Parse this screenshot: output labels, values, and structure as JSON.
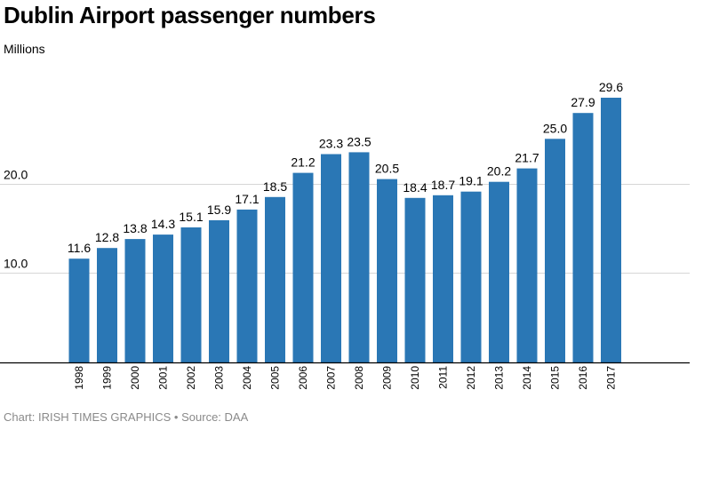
{
  "title": "Dublin Airport passenger numbers",
  "subtitle": "Millions",
  "footer": {
    "chart_credit": "Chart: IRISH TIMES GRAPHICS",
    "separator": "•",
    "source": "Source: DAA"
  },
  "colors": {
    "bar": "#2a77b5",
    "gridline": "#d6d6d6",
    "axis": "#000000",
    "footer_text": "#8a8a8a"
  },
  "chart_data": {
    "type": "bar",
    "title": "Dublin Airport passenger numbers",
    "ylabel": "Millions",
    "xlabel": "",
    "categories": [
      "1998",
      "1999",
      "2000",
      "2001",
      "2002",
      "2003",
      "2004",
      "2005",
      "2006",
      "2007",
      "2008",
      "2009",
      "2010",
      "2011",
      "2012",
      "2013",
      "2014",
      "2015",
      "2016",
      "2017"
    ],
    "values": [
      11.6,
      12.8,
      13.8,
      14.3,
      15.1,
      15.9,
      17.1,
      18.5,
      21.2,
      23.3,
      23.5,
      20.5,
      18.4,
      18.7,
      19.1,
      20.2,
      21.7,
      25.0,
      27.9,
      29.6
    ],
    "value_labels": [
      "11.6",
      "12.8",
      "13.8",
      "14.3",
      "15.1",
      "15.9",
      "17.1",
      "18.5",
      "21.2",
      "23.3",
      "23.5",
      "20.5",
      "18.4",
      "18.7",
      "19.1",
      "20.2",
      "21.7",
      "25.0",
      "27.9",
      "29.6"
    ],
    "y_ticks": [
      10,
      20
    ],
    "y_tick_labels": [
      "10.0",
      "20.0"
    ],
    "ylim": [
      0,
      30.2
    ],
    "grid": true,
    "legend": "none"
  }
}
